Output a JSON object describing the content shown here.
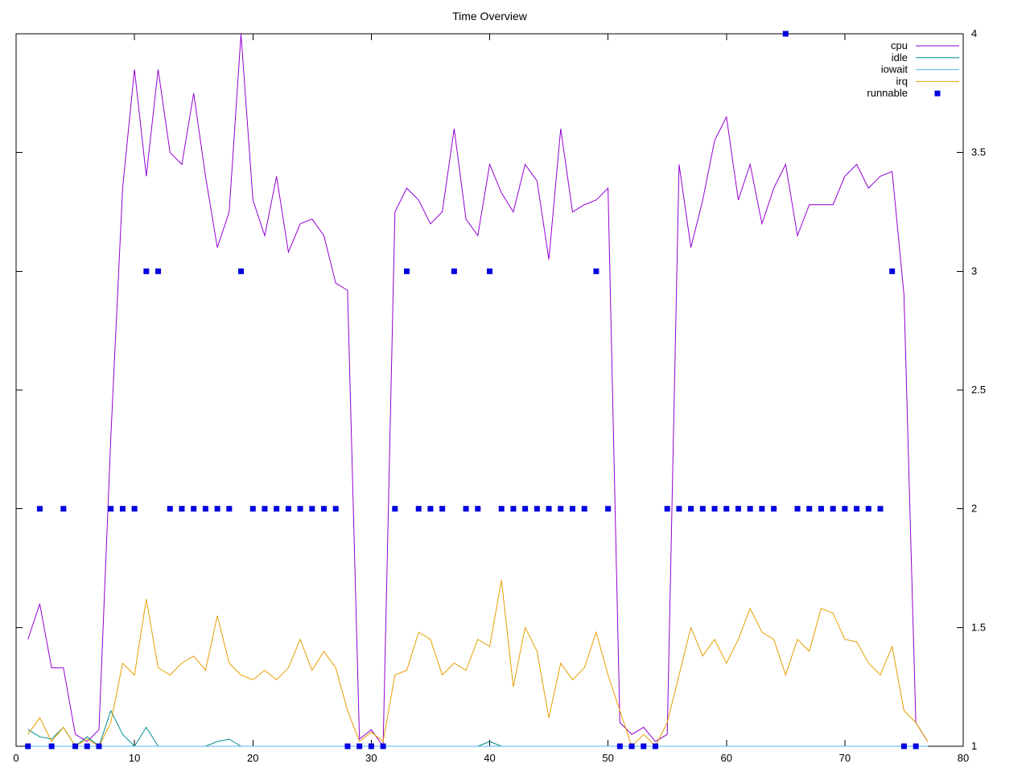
{
  "title": "Time Overview",
  "colors": {
    "background": "#ffffff",
    "axis": "#000000",
    "cpu": "#9400d3",
    "idle": "#008b8b",
    "iowait": "#56b4e9",
    "irq": "#e69f00",
    "runnable": "#0000e0"
  },
  "chart_data": {
    "type": "line",
    "title": "Time Overview",
    "xlabel": "",
    "ylabel": "",
    "xlim": [
      0,
      80
    ],
    "ylim": [
      1,
      4
    ],
    "xticks": [
      0,
      10,
      20,
      30,
      40,
      50,
      60,
      70,
      80
    ],
    "yticks": [
      1,
      1.5,
      2,
      2.5,
      3,
      3.5,
      4
    ],
    "ytick_side": "right",
    "grid": false,
    "legend_position": "top-right",
    "x": [
      1,
      2,
      3,
      4,
      5,
      6,
      7,
      8,
      9,
      10,
      11,
      12,
      13,
      14,
      15,
      16,
      17,
      18,
      19,
      20,
      21,
      22,
      23,
      24,
      25,
      26,
      27,
      28,
      29,
      30,
      31,
      32,
      33,
      34,
      35,
      36,
      37,
      38,
      39,
      40,
      41,
      42,
      43,
      44,
      45,
      46,
      47,
      48,
      49,
      50,
      51,
      52,
      53,
      54,
      55,
      56,
      57,
      58,
      59,
      60,
      61,
      62,
      63,
      64,
      65,
      66,
      67,
      68,
      69,
      70,
      71,
      72,
      73,
      74,
      75,
      76,
      77
    ],
    "series": [
      {
        "name": "cpu",
        "kind": "line",
        "color": "#9400d3",
        "values": [
          1.45,
          1.6,
          1.33,
          1.33,
          1.05,
          1.02,
          1.07,
          2.3,
          3.35,
          3.85,
          3.4,
          3.85,
          3.5,
          3.45,
          3.75,
          3.4,
          3.1,
          3.25,
          4.0,
          3.3,
          3.15,
          3.4,
          3.08,
          3.2,
          3.22,
          3.15,
          2.95,
          2.92,
          1.03,
          1.07,
          1.0,
          3.25,
          3.35,
          3.3,
          3.2,
          3.25,
          3.6,
          3.22,
          3.15,
          3.45,
          3.33,
          3.25,
          3.45,
          3.38,
          3.05,
          3.6,
          3.25,
          3.28,
          3.3,
          3.35,
          1.1,
          1.05,
          1.08,
          1.02,
          1.05,
          3.45,
          3.1,
          3.3,
          3.55,
          3.65,
          3.3,
          3.45,
          3.2,
          3.35,
          3.45,
          3.15,
          3.28,
          3.28,
          3.28,
          3.4,
          3.45,
          3.35,
          3.4,
          3.42,
          2.9,
          1.1,
          1.02
        ]
      },
      {
        "name": "idle",
        "kind": "line",
        "color": "#008b8b",
        "values": [
          1.07,
          1.04,
          1.03,
          1.08,
          1.0,
          1.04,
          1.0,
          1.15,
          1.05,
          1.0,
          1.08,
          1.0,
          1.0,
          1.0,
          1.0,
          1.0,
          1.02,
          1.03,
          1.0,
          1.0,
          1.0,
          1.0,
          1.0,
          1.0,
          1.0,
          1.0,
          1.0,
          1.0,
          1.0,
          1.0,
          1.0,
          1.0,
          1.0,
          1.0,
          1.0,
          1.0,
          1.0,
          1.0,
          1.0,
          1.02,
          1.0,
          1.0,
          1.0,
          1.0,
          1.0,
          1.0,
          1.0,
          1.0,
          1.0,
          1.0,
          1.0,
          1.0,
          1.0,
          1.0,
          1.0,
          1.0,
          1.0,
          1.0,
          1.0,
          1.0,
          1.0,
          1.0,
          1.0,
          1.0,
          1.0,
          1.0,
          1.0,
          1.0,
          1.0,
          1.0,
          1.0,
          1.0,
          1.0,
          1.0,
          1.0,
          1.0,
          1.0
        ]
      },
      {
        "name": "iowait",
        "kind": "line",
        "color": "#56b4e9",
        "values": [
          1.0,
          1.0,
          1.0,
          1.0,
          1.0,
          1.0,
          1.0,
          1.0,
          1.0,
          1.0,
          1.0,
          1.0,
          1.0,
          1.0,
          1.0,
          1.0,
          1.0,
          1.0,
          1.0,
          1.0,
          1.0,
          1.0,
          1.0,
          1.0,
          1.0,
          1.0,
          1.0,
          1.0,
          1.0,
          1.0,
          1.0,
          1.0,
          1.0,
          1.0,
          1.0,
          1.0,
          1.0,
          1.0,
          1.0,
          1.0,
          1.0,
          1.0,
          1.0,
          1.0,
          1.0,
          1.0,
          1.0,
          1.0,
          1.0,
          1.0,
          1.0,
          1.0,
          1.0,
          1.0,
          1.0,
          1.0,
          1.0,
          1.0,
          1.0,
          1.0,
          1.0,
          1.0,
          1.0,
          1.0,
          1.0,
          1.0,
          1.0,
          1.0,
          1.0,
          1.0,
          1.0,
          1.0,
          1.0,
          1.0,
          1.0,
          1.0,
          1.0
        ]
      },
      {
        "name": "irq",
        "kind": "line",
        "color": "#e69f00",
        "values": [
          1.05,
          1.12,
          1.02,
          1.08,
          1.0,
          1.03,
          1.0,
          1.1,
          1.35,
          1.3,
          1.62,
          1.33,
          1.3,
          1.35,
          1.38,
          1.32,
          1.55,
          1.35,
          1.3,
          1.28,
          1.32,
          1.28,
          1.33,
          1.45,
          1.32,
          1.4,
          1.33,
          1.15,
          1.02,
          1.06,
          1.02,
          1.3,
          1.32,
          1.48,
          1.45,
          1.3,
          1.35,
          1.32,
          1.45,
          1.42,
          1.7,
          1.25,
          1.5,
          1.4,
          1.12,
          1.35,
          1.28,
          1.33,
          1.48,
          1.3,
          1.15,
          1.0,
          1.05,
          1.0,
          1.1,
          1.3,
          1.5,
          1.38,
          1.45,
          1.35,
          1.45,
          1.58,
          1.48,
          1.45,
          1.3,
          1.45,
          1.4,
          1.58,
          1.56,
          1.45,
          1.44,
          1.35,
          1.3,
          1.42,
          1.15,
          1.1,
          1.02
        ]
      },
      {
        "name": "runnable",
        "kind": "points",
        "marker": "square",
        "color": "#0000e0",
        "points": [
          [
            1,
            1
          ],
          [
            2,
            2
          ],
          [
            3,
            1
          ],
          [
            4,
            2
          ],
          [
            5,
            1
          ],
          [
            6,
            1
          ],
          [
            7,
            1
          ],
          [
            8,
            2
          ],
          [
            9,
            2
          ],
          [
            10,
            2
          ],
          [
            11,
            3
          ],
          [
            12,
            3
          ],
          [
            13,
            2
          ],
          [
            14,
            2
          ],
          [
            15,
            2
          ],
          [
            16,
            2
          ],
          [
            17,
            2
          ],
          [
            18,
            2
          ],
          [
            19,
            3
          ],
          [
            20,
            2
          ],
          [
            21,
            2
          ],
          [
            22,
            2
          ],
          [
            23,
            2
          ],
          [
            24,
            2
          ],
          [
            25,
            2
          ],
          [
            26,
            2
          ],
          [
            27,
            2
          ],
          [
            28,
            1
          ],
          [
            29,
            1
          ],
          [
            30,
            1
          ],
          [
            31,
            1
          ],
          [
            32,
            2
          ],
          [
            33,
            3
          ],
          [
            34,
            2
          ],
          [
            35,
            2
          ],
          [
            36,
            2
          ],
          [
            37,
            3
          ],
          [
            38,
            2
          ],
          [
            39,
            2
          ],
          [
            40,
            3
          ],
          [
            41,
            2
          ],
          [
            42,
            2
          ],
          [
            43,
            2
          ],
          [
            44,
            2
          ],
          [
            45,
            2
          ],
          [
            46,
            2
          ],
          [
            47,
            2
          ],
          [
            48,
            2
          ],
          [
            49,
            3
          ],
          [
            50,
            2
          ],
          [
            51,
            1
          ],
          [
            52,
            1
          ],
          [
            53,
            1
          ],
          [
            54,
            1
          ],
          [
            55,
            2
          ],
          [
            56,
            2
          ],
          [
            57,
            2
          ],
          [
            58,
            2
          ],
          [
            59,
            2
          ],
          [
            60,
            2
          ],
          [
            61,
            2
          ],
          [
            62,
            2
          ],
          [
            63,
            2
          ],
          [
            64,
            2
          ],
          [
            65,
            4
          ],
          [
            66,
            2
          ],
          [
            67,
            2
          ],
          [
            68,
            2
          ],
          [
            69,
            2
          ],
          [
            70,
            2
          ],
          [
            71,
            2
          ],
          [
            72,
            2
          ],
          [
            73,
            2
          ],
          [
            74,
            3
          ],
          [
            75,
            1
          ],
          [
            76,
            1
          ]
        ]
      }
    ]
  }
}
